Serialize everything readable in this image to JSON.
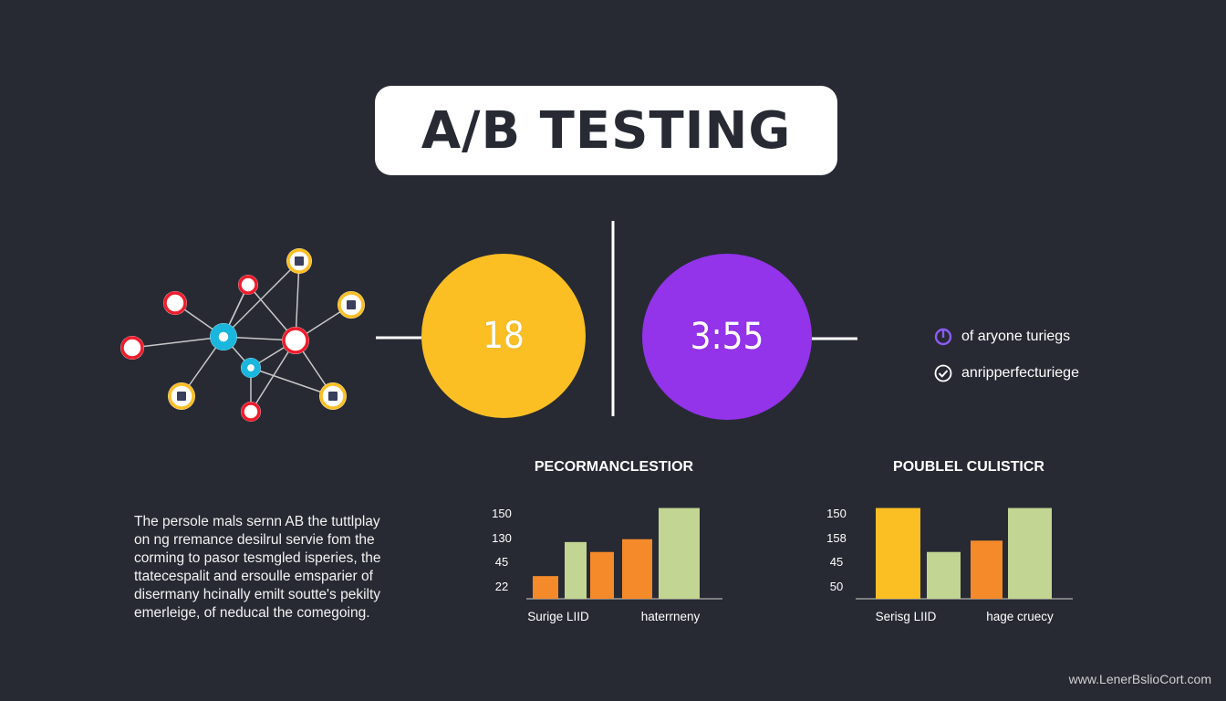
{
  "title": "A/B TESTING",
  "circles": [
    {
      "label": "18",
      "color": "#fbbf24"
    },
    {
      "label": "3:55",
      "color": "#9333ea"
    }
  ],
  "legend": [
    {
      "icon": "power-icon",
      "text": "of aryone turiegs",
      "color": "#8b5cf6"
    },
    {
      "icon": "check-icon",
      "text": "anripperfecturiege",
      "color": "#ffffff"
    }
  ],
  "paragraph": [
    "The persole mals sernn AB the tuttlplay",
    "on ng rremance desilrul servie fom the",
    "corming to pasor tesmgled isperies, the",
    "ttatecespalit and ersoulle emsparier of",
    "disermany hcinally emilt soutte's pekilty",
    "emerleige, of neducal the comegoing."
  ],
  "network": {
    "colors": {
      "red": "#ef1c2c",
      "blue": "#1ab6dd",
      "yellow": "#fbbf24"
    }
  },
  "chart_data": [
    {
      "type": "bar",
      "title": "PECORMANCLESTIOR",
      "y_ticks": [
        "150",
        "130",
        "45",
        "22"
      ],
      "categories": [
        "Surige LIID",
        "haterrneny"
      ],
      "bars": [
        {
          "value": 32,
          "color": "#f58a2a"
        },
        {
          "value": 80,
          "color": "#c2d592"
        },
        {
          "value": 66,
          "color": "#f58a2a"
        },
        {
          "value": 84,
          "color": "#f58a2a"
        },
        {
          "value": 128,
          "color": "#c2d592"
        }
      ],
      "ylim": [
        0,
        130
      ]
    },
    {
      "type": "bar",
      "title": "POUBLEL CULISTICR",
      "y_ticks": [
        "150",
        "158",
        "45",
        "50"
      ],
      "categories": [
        "Serisg LIID",
        "hage cruecy"
      ],
      "bars": [
        {
          "value": 128,
          "color": "#fbbf24"
        },
        {
          "value": 66,
          "color": "#c2d592"
        },
        {
          "value": 82,
          "color": "#f58a2a"
        },
        {
          "value": 128,
          "color": "#c2d592"
        }
      ],
      "ylim": [
        0,
        130
      ]
    }
  ],
  "watermark": "www.LenerBslioCort.com"
}
